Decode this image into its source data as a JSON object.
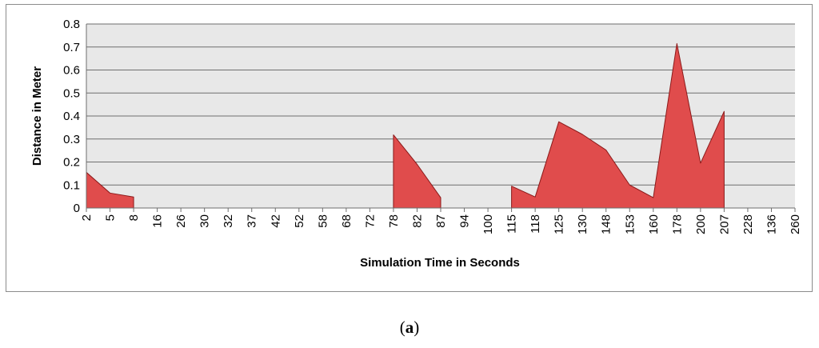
{
  "caption": {
    "open": "(",
    "letter": "a",
    "close": ")"
  },
  "chart_data": {
    "type": "area",
    "xlabel": "Simulation Time in Seconds",
    "ylabel": "Distance in Meter",
    "ylim": [
      0,
      0.8
    ],
    "yticks": [
      "0",
      "0.1",
      "0.2",
      "0.3",
      "0.4",
      "0.5",
      "0.6",
      "0.7",
      "0.8"
    ],
    "categories": [
      "2",
      "5",
      "8",
      "16",
      "26",
      "30",
      "32",
      "37",
      "42",
      "52",
      "58",
      "68",
      "72",
      "78",
      "82",
      "87",
      "94",
      "100",
      "115",
      "118",
      "125",
      "130",
      "148",
      "153",
      "160",
      "178",
      "200",
      "207",
      "228",
      "136",
      "260"
    ],
    "series": [
      {
        "values": [
          0.155,
          0.065,
          0.048,
          null,
          null,
          null,
          null,
          null,
          null,
          null,
          null,
          null,
          null,
          0.318,
          0.19,
          0.045,
          null,
          null,
          0.095,
          0.048,
          0.375,
          0.32,
          0.252,
          0.1,
          0.045,
          0.715,
          0.195,
          0.42,
          null,
          null,
          null
        ],
        "color": "#e04c4c",
        "stroke": "#8b1a1a"
      }
    ],
    "grid": true,
    "plot_background": "#e8e8e8"
  }
}
